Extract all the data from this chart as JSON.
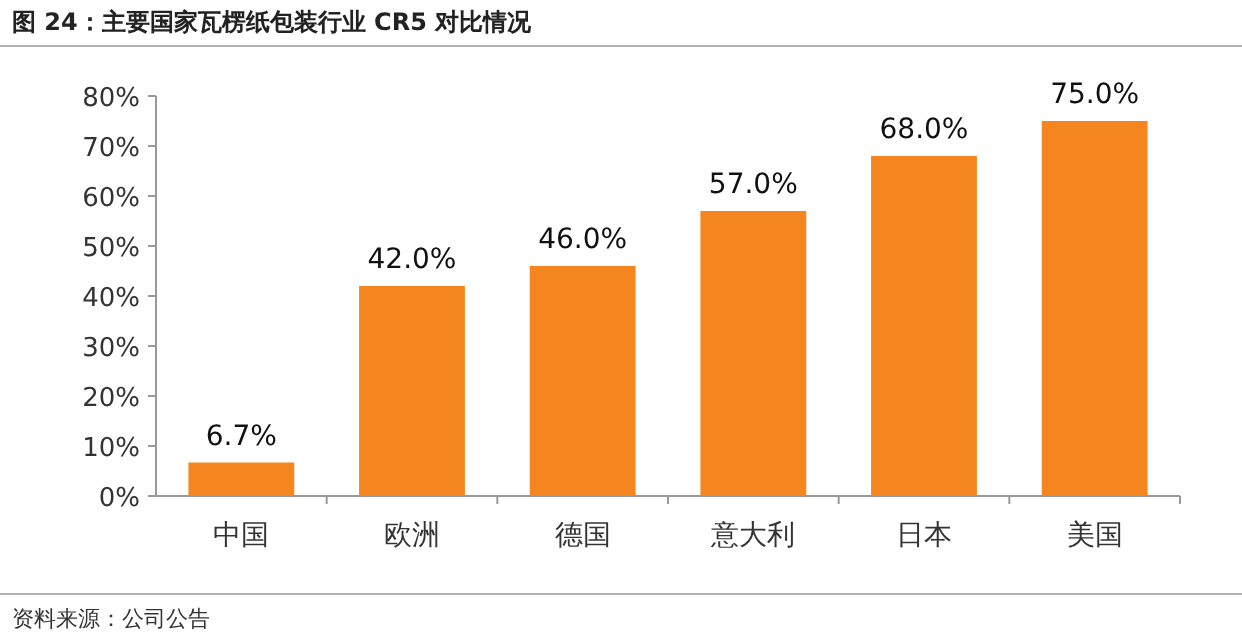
{
  "chart_data": {
    "type": "bar",
    "title": "图 24：主要国家瓦楞纸包装行业 CR5 对比情况",
    "categories": [
      "中国",
      "欧洲",
      "德国",
      "意大利",
      "日本",
      "美国"
    ],
    "values": [
      6.7,
      42.0,
      46.0,
      57.0,
      68.0,
      75.0
    ],
    "value_labels": [
      "6.7%",
      "42.0%",
      "46.0%",
      "57.0%",
      "68.0%",
      "75.0%"
    ],
    "color": "#f5861f",
    "ylim": [
      0,
      80
    ],
    "yticks": [
      {
        "value": 0,
        "label": "0%"
      },
      {
        "value": 10,
        "label": "10%"
      },
      {
        "value": 20,
        "label": "20%"
      },
      {
        "value": 30,
        "label": "30%"
      },
      {
        "value": 40,
        "label": "40%"
      },
      {
        "value": 50,
        "label": "50%"
      },
      {
        "value": 60,
        "label": "60%"
      },
      {
        "value": 70,
        "label": "70%"
      },
      {
        "value": 80,
        "label": "80%"
      }
    ],
    "grid": false,
    "annotations": [
      "资料来源：公司公告"
    ]
  }
}
